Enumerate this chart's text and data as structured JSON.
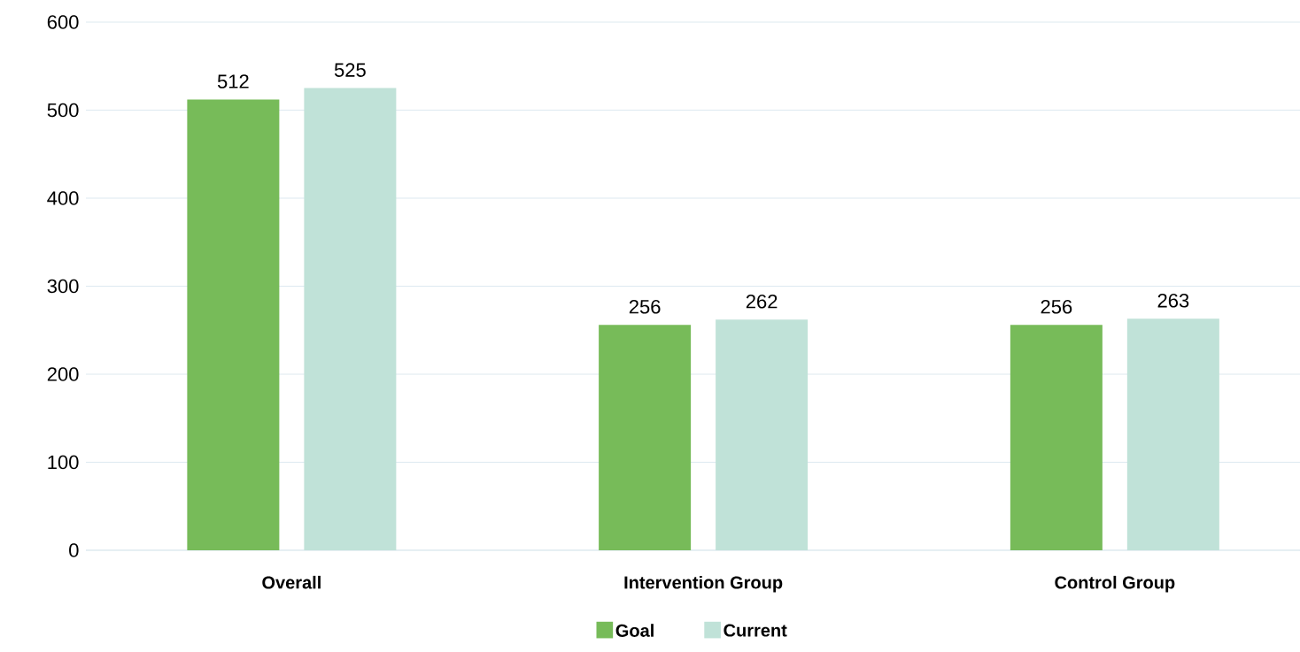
{
  "chart_data": {
    "type": "bar",
    "categories": [
      "Overall",
      "Intervention Group",
      "Control Group"
    ],
    "series": [
      {
        "name": "Goal",
        "color": "#77bb59",
        "values": [
          512,
          256,
          256
        ]
      },
      {
        "name": "Current",
        "color": "#c0e2d8",
        "values": [
          525,
          262,
          263
        ]
      }
    ],
    "ylim": [
      0,
      600
    ],
    "yticks": [
      0,
      100,
      200,
      300,
      400,
      500,
      600
    ],
    "grid": "y",
    "legend": "bottom",
    "data_labels": true
  }
}
